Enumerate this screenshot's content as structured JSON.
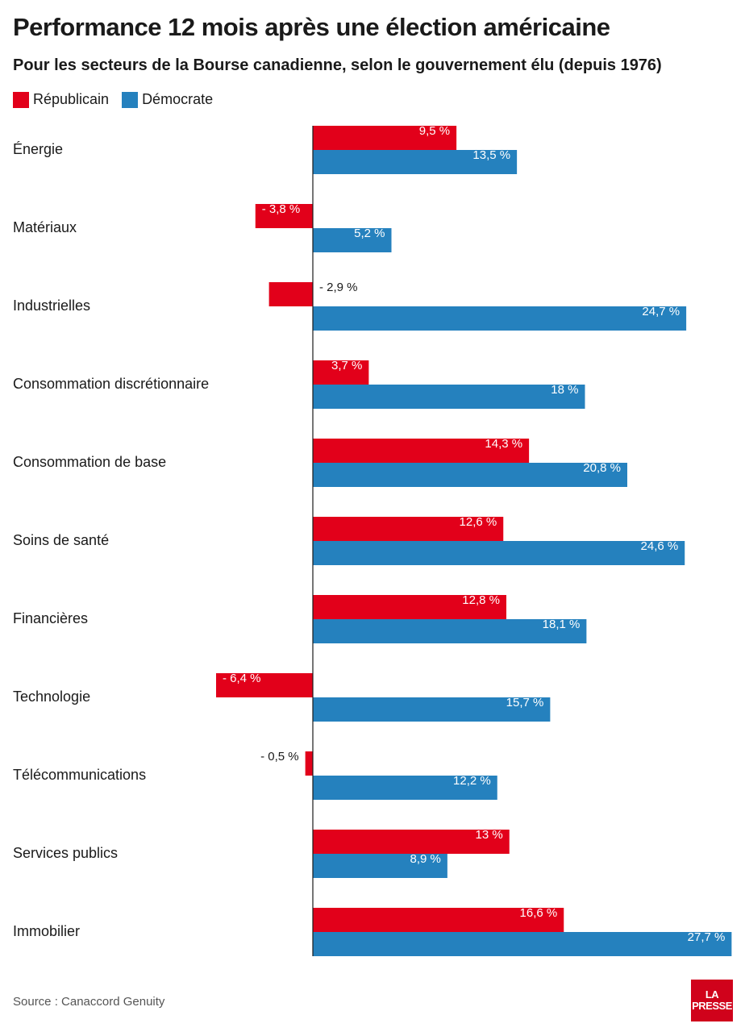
{
  "header": {
    "title": "Performance 12 mois après une élection américaine",
    "subtitle": "Pour les secteurs de la Bourse canadienne, selon le gouvernement élu (depuis 1976)"
  },
  "legend": {
    "republican_label": "Républicain",
    "democrat_label": "Démocrate"
  },
  "colors": {
    "republican": "#e2001a",
    "democrat": "#2581be"
  },
  "chart_data": {
    "type": "bar",
    "orientation": "horizontal",
    "categories": [
      "Énergie",
      "Matériaux",
      "Industrielles",
      "Consommation discrétionnaire",
      "Consommation de base",
      "Soins de santé",
      "Financières",
      "Technologie",
      "Télécommunications",
      "Services publics",
      "Immobilier"
    ],
    "series": [
      {
        "name": "Républicain",
        "values": [
          9.5,
          -3.8,
          -2.9,
          3.7,
          14.3,
          12.6,
          12.8,
          -6.4,
          -0.5,
          13,
          16.6
        ],
        "labels": [
          "9,5 %",
          "- 3,8 %",
          "- 2,9 %",
          "3,7 %",
          "14,3 %",
          "12,6 %",
          "12,8 %",
          "- 6,4 %",
          "- 0,5 %",
          "13 %",
          "16,6 %"
        ]
      },
      {
        "name": "Démocrate",
        "values": [
          13.5,
          5.2,
          24.7,
          18,
          20.8,
          24.6,
          18.1,
          15.7,
          12.2,
          8.9,
          27.7
        ],
        "labels": [
          "13,5 %",
          "5,2 %",
          "24,7 %",
          "18 %",
          "20,8 %",
          "24,6 %",
          "18,1 %",
          "15,7 %",
          "12,2 %",
          "8,9 %",
          "27,7 %"
        ]
      }
    ],
    "unit": "%"
  },
  "footer": {
    "source": "Source : Canaccord Genuity",
    "logo_text": "LA PRESSE"
  }
}
